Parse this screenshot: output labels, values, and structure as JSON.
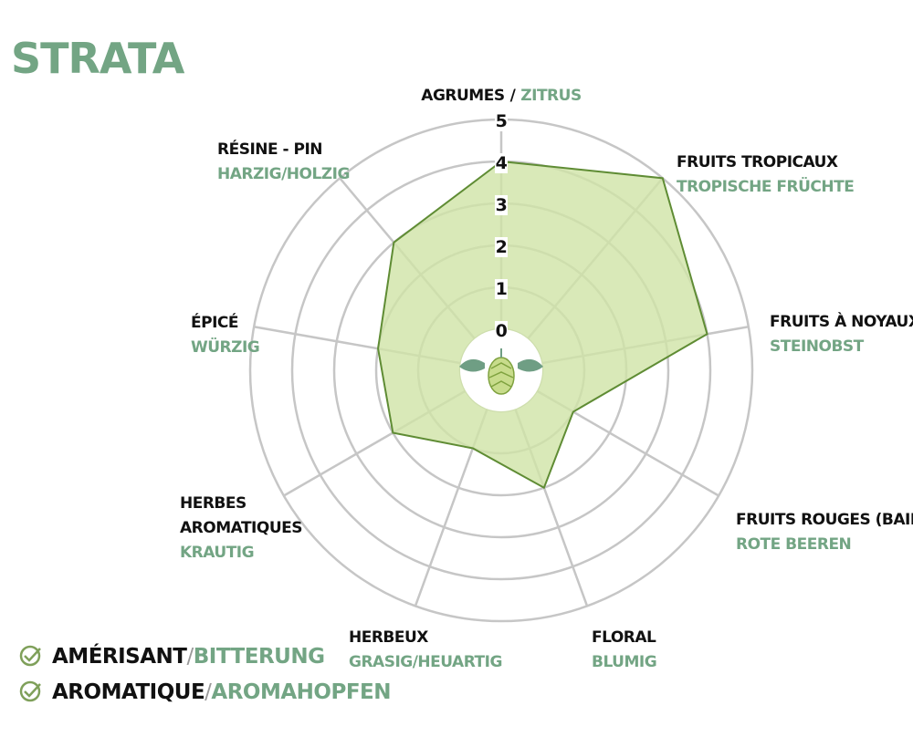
{
  "chart_data": {
    "type": "radar",
    "title": "STRATA",
    "categories": [
      "AGRUMES",
      "FRUITS TROPICAUX",
      "FRUITS À NOYAUX",
      "FRUITS ROUGES (BAIES)",
      "FLORAL",
      "HERBEUX",
      "HERBES AROMATIQUES",
      "ÉPICÉ",
      "RÉSINE - PIN"
    ],
    "category_translations": [
      "ZITRUS",
      "TROPISCHE FRÜCHTE",
      "STEINOBST",
      "ROTE BEEREN",
      "BLUMIG",
      "GRASIG/HEUARTIG",
      "KRAUTIG",
      "WÜRZIG",
      "HARZIG/HOLZIG"
    ],
    "separator": "/",
    "values": [
      4,
      5,
      4,
      1,
      2,
      1,
      2,
      2,
      3
    ],
    "color": "#5f8c34",
    "fill": "#cfe3a6",
    "ylim": [
      0,
      5
    ],
    "yticks": [
      0,
      1,
      2,
      3,
      4,
      5
    ],
    "grid": true,
    "legend": [
      {
        "label": "AMÉRISANT",
        "translation": "BITTERUNG"
      },
      {
        "label": "AROMATIQUE",
        "translation": "AROMAHOPFEN"
      }
    ]
  }
}
